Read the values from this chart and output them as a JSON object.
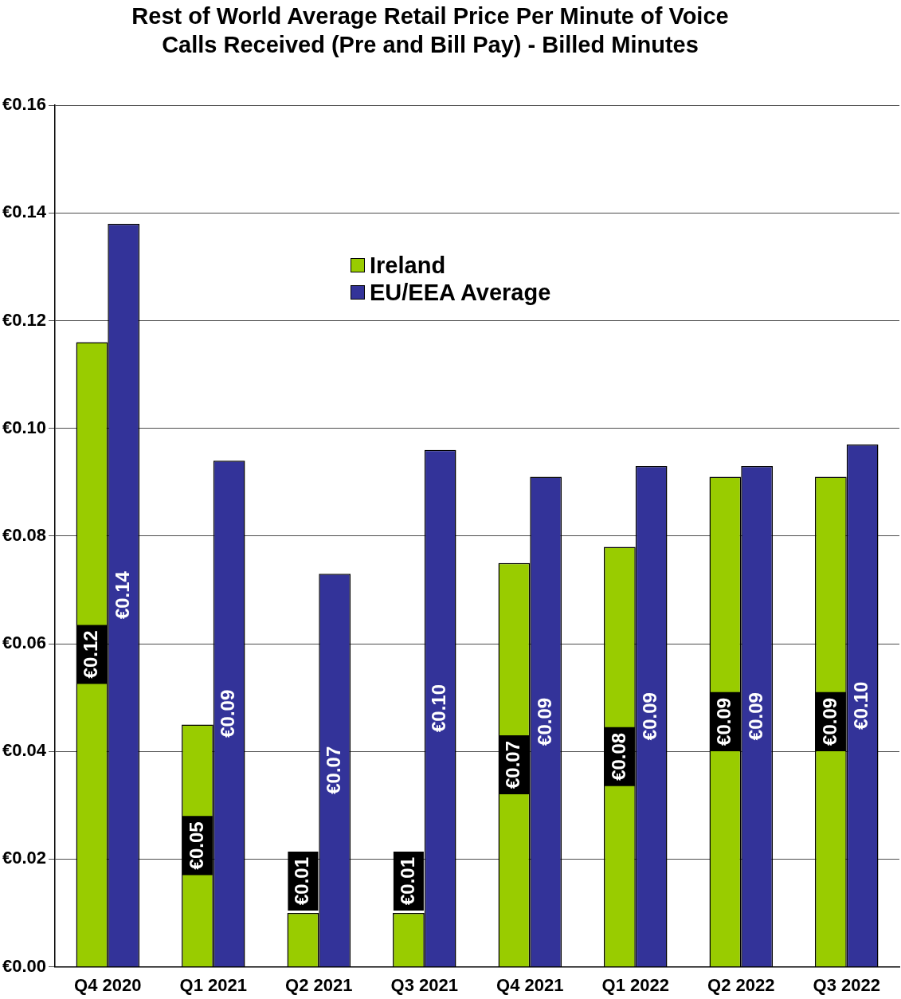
{
  "chart_data": {
    "type": "bar",
    "title": "Rest of World Average Retail Price Per Minute of Voice Calls Received (Pre and Bill Pay) - Billed Minutes",
    "categories": [
      "Q4 2020",
      "Q1 2021",
      "Q2 2021",
      "Q3 2021",
      "Q4 2021",
      "Q1 2022",
      "Q2 2022",
      "Q3 2022"
    ],
    "series": [
      {
        "name": "Ireland",
        "color": "#99cc00",
        "values": [
          0.116,
          0.045,
          0.01,
          0.01,
          0.075,
          0.078,
          0.091,
          0.091
        ],
        "value_labels": [
          "€0.12",
          "€0.05",
          "€0.01",
          "€0.01",
          "€0.07",
          "€0.08",
          "€0.09",
          "€0.09"
        ]
      },
      {
        "name": "EU/EEA Average",
        "color": "#333399",
        "values": [
          0.138,
          0.094,
          0.073,
          0.096,
          0.091,
          0.093,
          0.093,
          0.097
        ],
        "value_labels": [
          "€0.14",
          "€0.09",
          "€0.07",
          "€0.10",
          "€0.09",
          "€0.09",
          "€0.09",
          "€0.10"
        ]
      }
    ],
    "ylim": [
      0,
      0.16
    ],
    "yticks": [
      {
        "value": 0,
        "label": "€0.00"
      },
      {
        "value": 0.02,
        "label": "€0.02"
      },
      {
        "value": 0.04,
        "label": "€0.04"
      },
      {
        "value": 0.06,
        "label": "€0.06"
      },
      {
        "value": 0.08,
        "label": "€0.08"
      },
      {
        "value": 0.1,
        "label": "€0.10"
      },
      {
        "value": 0.12,
        "label": "€0.12"
      },
      {
        "value": 0.14,
        "label": "€0.14"
      },
      {
        "value": 0.16,
        "label": "€0.16"
      }
    ],
    "grid": "y",
    "legend": "top"
  }
}
